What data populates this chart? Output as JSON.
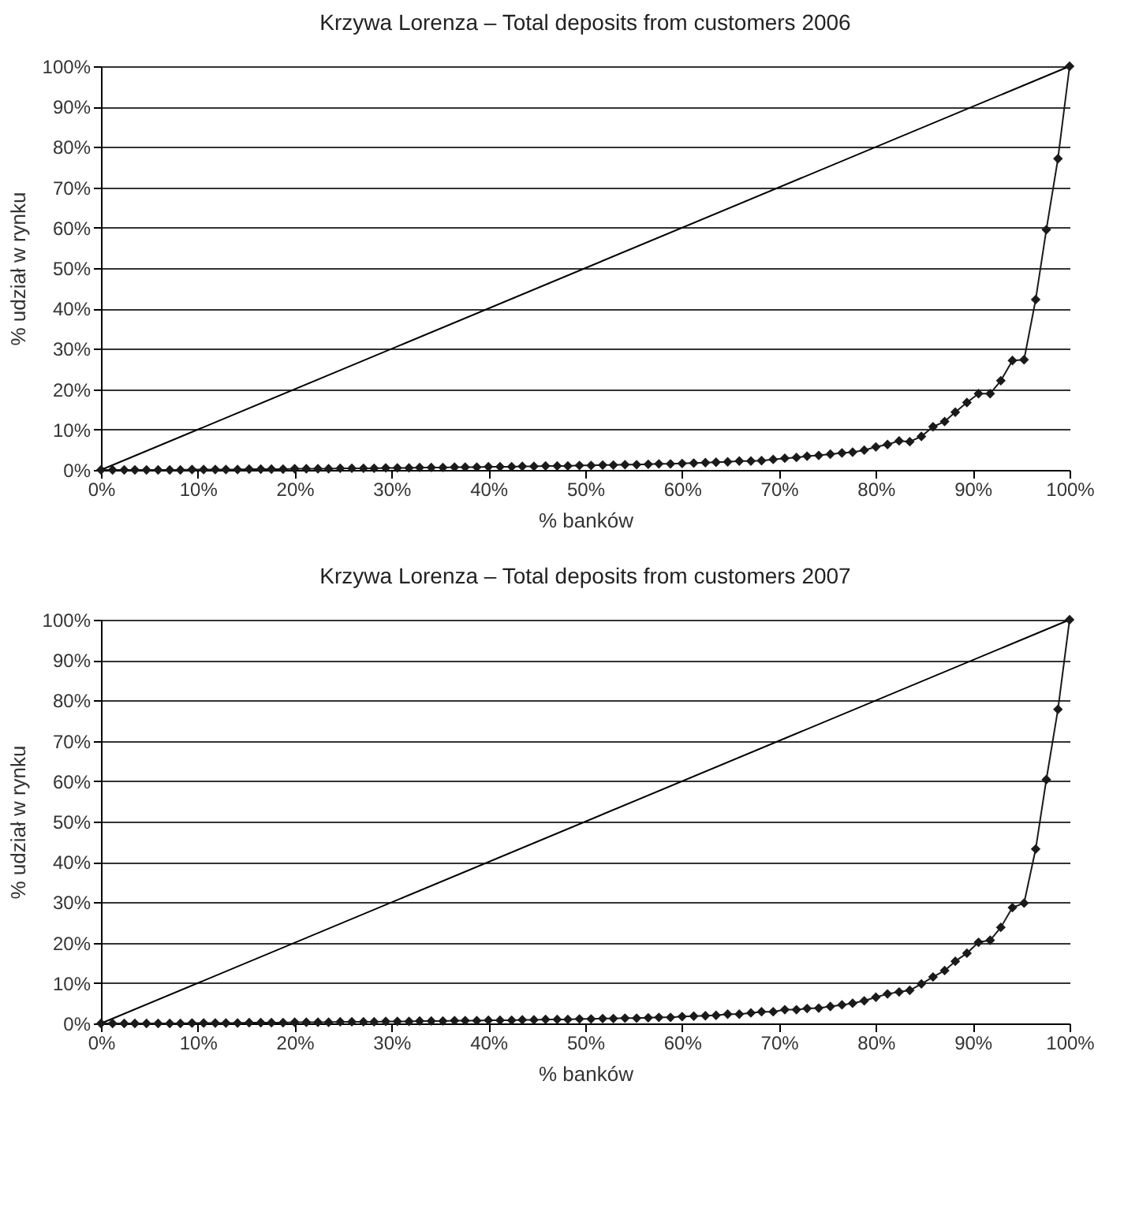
{
  "chart_data": [
    {
      "type": "line",
      "title": "Krzywa Lorenza – Total deposits from customers 2006",
      "xlabel": "% banków",
      "ylabel": "% udział w rynku",
      "grid": "y",
      "xlim": [
        0,
        100
      ],
      "ylim": [
        0,
        100
      ],
      "xticks": [
        {
          "value": 0,
          "label": "0%"
        },
        {
          "value": 10,
          "label": "10%"
        },
        {
          "value": 20,
          "label": "20%"
        },
        {
          "value": 30,
          "label": "30%"
        },
        {
          "value": 40,
          "label": "40%"
        },
        {
          "value": 50,
          "label": "50%"
        },
        {
          "value": 60,
          "label": "60%"
        },
        {
          "value": 70,
          "label": "70%"
        },
        {
          "value": 80,
          "label": "80%"
        },
        {
          "value": 90,
          "label": "90%"
        },
        {
          "value": 100,
          "label": "100%"
        }
      ],
      "yticks": [
        {
          "value": 0,
          "label": "0%"
        },
        {
          "value": 10,
          "label": "10%"
        },
        {
          "value": 20,
          "label": "20%"
        },
        {
          "value": 30,
          "label": "30%"
        },
        {
          "value": 40,
          "label": "40%"
        },
        {
          "value": 50,
          "label": "50%"
        },
        {
          "value": 60,
          "label": "60%"
        },
        {
          "value": 70,
          "label": "70%"
        },
        {
          "value": 80,
          "label": "80%"
        },
        {
          "value": 90,
          "label": "90%"
        },
        {
          "value": 100,
          "label": "100%"
        }
      ],
      "series": [
        {
          "color": "#000000",
          "marker": "none",
          "x": [
            0,
            100
          ],
          "values": [
            0,
            100
          ]
        },
        {
          "color": "#1a1a1a",
          "marker": "diamond",
          "x": [
            0,
            1.2,
            2.4,
            3.5,
            4.7,
            5.9,
            7.1,
            8.2,
            9.4,
            10.6,
            11.8,
            12.9,
            14.1,
            15.3,
            16.5,
            17.6,
            18.8,
            20.0,
            21.2,
            22.4,
            23.5,
            24.7,
            25.9,
            27.1,
            28.2,
            29.4,
            30.6,
            31.8,
            32.9,
            34.1,
            35.3,
            36.5,
            37.6,
            38.8,
            40.0,
            41.2,
            42.4,
            43.5,
            44.7,
            45.9,
            47.1,
            48.2,
            49.4,
            50.6,
            51.8,
            52.9,
            54.1,
            55.3,
            56.5,
            57.6,
            58.8,
            60.0,
            61.2,
            62.4,
            63.5,
            64.7,
            65.9,
            67.1,
            68.2,
            69.4,
            70.6,
            71.8,
            72.9,
            74.1,
            75.3,
            76.5,
            77.6,
            78.8,
            80.0,
            81.2,
            82.4,
            83.5,
            84.7,
            85.9,
            87.1,
            88.2,
            89.4,
            90.6,
            91.8,
            92.9,
            94.1,
            95.3,
            96.5,
            97.6,
            98.8,
            100
          ],
          "values": [
            0,
            0,
            0,
            0,
            0,
            0,
            0,
            0,
            0.1,
            0.1,
            0.1,
            0.1,
            0.1,
            0.2,
            0.2,
            0.2,
            0.2,
            0.3,
            0.3,
            0.3,
            0.3,
            0.4,
            0.4,
            0.4,
            0.4,
            0.5,
            0.5,
            0.5,
            0.6,
            0.6,
            0.6,
            0.7,
            0.7,
            0.7,
            0.8,
            0.8,
            0.8,
            0.9,
            0.9,
            1.0,
            1.0,
            1.0,
            1.1,
            1.1,
            1.2,
            1.2,
            1.3,
            1.3,
            1.4,
            1.5,
            1.5,
            1.6,
            1.7,
            1.8,
            1.9,
            2.0,
            2.2,
            2.2,
            2.3,
            2.6,
            2.9,
            3.1,
            3.4,
            3.6,
            3.9,
            4.2,
            4.4,
            4.9,
            5.7,
            6.3,
            7.2,
            7.0,
            8.3,
            10.7,
            12.0,
            14.3,
            16.7,
            18.9,
            18.9,
            22.1,
            27.1,
            27.3,
            42.2,
            59.5,
            77.1,
            100
          ]
        }
      ]
    },
    {
      "type": "line",
      "title": "Krzywa Lorenza – Total deposits from customers 2007",
      "xlabel": "% banków",
      "ylabel": "% udział w rynku",
      "grid": "y",
      "xlim": [
        0,
        100
      ],
      "ylim": [
        0,
        100
      ],
      "xticks": [
        {
          "value": 0,
          "label": "0%"
        },
        {
          "value": 10,
          "label": "10%"
        },
        {
          "value": 20,
          "label": "20%"
        },
        {
          "value": 30,
          "label": "30%"
        },
        {
          "value": 40,
          "label": "40%"
        },
        {
          "value": 50,
          "label": "50%"
        },
        {
          "value": 60,
          "label": "60%"
        },
        {
          "value": 70,
          "label": "70%"
        },
        {
          "value": 80,
          "label": "80%"
        },
        {
          "value": 90,
          "label": "90%"
        },
        {
          "value": 100,
          "label": "100%"
        }
      ],
      "yticks": [
        {
          "value": 0,
          "label": "0%"
        },
        {
          "value": 10,
          "label": "10%"
        },
        {
          "value": 20,
          "label": "20%"
        },
        {
          "value": 30,
          "label": "30%"
        },
        {
          "value": 40,
          "label": "40%"
        },
        {
          "value": 50,
          "label": "50%"
        },
        {
          "value": 60,
          "label": "60%"
        },
        {
          "value": 70,
          "label": "70%"
        },
        {
          "value": 80,
          "label": "80%"
        },
        {
          "value": 90,
          "label": "90%"
        },
        {
          "value": 100,
          "label": "100%"
        }
      ],
      "series": [
        {
          "color": "#000000",
          "marker": "none",
          "x": [
            0,
            100
          ],
          "values": [
            0,
            100
          ]
        },
        {
          "color": "#1a1a1a",
          "marker": "diamond",
          "x": [
            0,
            1.2,
            2.4,
            3.5,
            4.7,
            5.9,
            7.1,
            8.2,
            9.4,
            10.6,
            11.8,
            12.9,
            14.1,
            15.3,
            16.5,
            17.6,
            18.8,
            20.0,
            21.2,
            22.4,
            23.5,
            24.7,
            25.9,
            27.1,
            28.2,
            29.4,
            30.6,
            31.8,
            32.9,
            34.1,
            35.3,
            36.5,
            37.6,
            38.8,
            40.0,
            41.2,
            42.4,
            43.5,
            44.7,
            45.9,
            47.1,
            48.2,
            49.4,
            50.6,
            51.8,
            52.9,
            54.1,
            55.3,
            56.5,
            57.6,
            58.8,
            60.0,
            61.2,
            62.4,
            63.5,
            64.7,
            65.9,
            67.1,
            68.2,
            69.4,
            70.6,
            71.8,
            72.9,
            74.1,
            75.3,
            76.5,
            77.6,
            78.8,
            80.0,
            81.2,
            82.4,
            83.5,
            84.7,
            85.9,
            87.1,
            88.2,
            89.4,
            90.6,
            91.8,
            92.9,
            94.1,
            95.3,
            96.5,
            97.6,
            98.8,
            100
          ],
          "values": [
            0,
            0,
            0,
            0,
            0,
            0,
            0,
            0,
            0.1,
            0.1,
            0.1,
            0.1,
            0.1,
            0.2,
            0.2,
            0.2,
            0.2,
            0.3,
            0.3,
            0.3,
            0.3,
            0.4,
            0.4,
            0.4,
            0.4,
            0.5,
            0.5,
            0.5,
            0.6,
            0.6,
            0.6,
            0.7,
            0.7,
            0.7,
            0.8,
            0.8,
            0.8,
            0.9,
            0.9,
            1.0,
            1.0,
            1.0,
            1.1,
            1.1,
            1.2,
            1.2,
            1.3,
            1.3,
            1.4,
            1.5,
            1.5,
            1.7,
            1.8,
            1.9,
            2.0,
            2.3,
            2.3,
            2.6,
            2.9,
            2.9,
            3.4,
            3.4,
            3.7,
            3.8,
            4.2,
            4.6,
            5.0,
            5.6,
            6.5,
            7.3,
            7.8,
            8.2,
            9.8,
            11.5,
            13.1,
            15.4,
            17.4,
            20.1,
            20.6,
            23.8,
            28.7,
            29.8,
            43.2,
            60.4,
            77.8,
            100
          ]
        }
      ]
    }
  ]
}
